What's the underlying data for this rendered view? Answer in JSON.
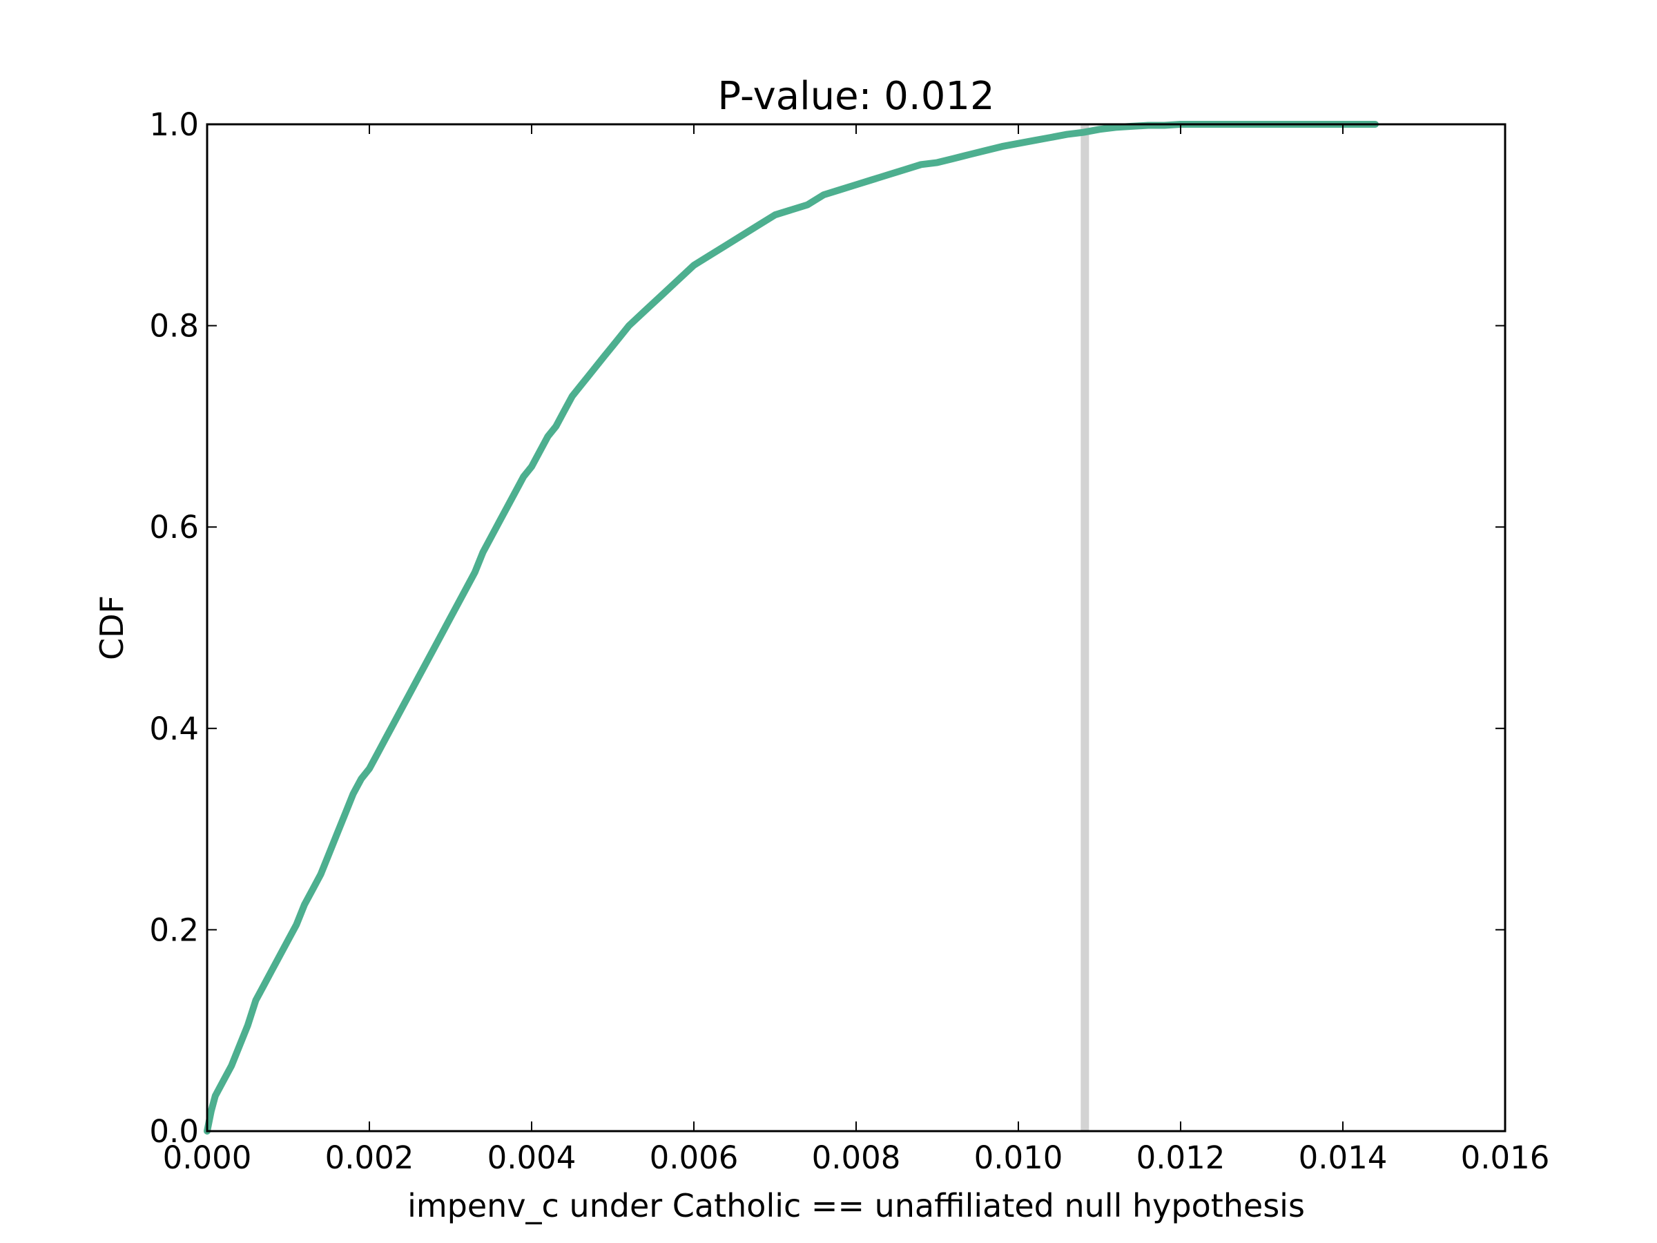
{
  "chart_data": {
    "type": "line",
    "title": "P-value: 0.012",
    "xlabel": "impenv_c under Catholic == unaffiliated null hypothesis",
    "ylabel": "CDF",
    "xlim": [
      0.0,
      0.016
    ],
    "ylim": [
      0.0,
      1.0
    ],
    "xticks": [
      "0.000",
      "0.002",
      "0.004",
      "0.006",
      "0.008",
      "0.010",
      "0.012",
      "0.014",
      "0.016"
    ],
    "yticks": [
      "0.0",
      "0.2",
      "0.4",
      "0.6",
      "0.8",
      "1.0"
    ],
    "grid": false,
    "legend": "none",
    "series": [
      {
        "color": "#4daf8f",
        "x": [
          0.0,
          5e-05,
          0.0001,
          0.0002,
          0.0003,
          0.0004,
          0.0005,
          0.0006,
          0.0007,
          0.0008,
          0.0009,
          0.001,
          0.0011,
          0.0012,
          0.0013,
          0.0014,
          0.0015,
          0.0016,
          0.0017,
          0.0018,
          0.0019,
          0.002,
          0.0021,
          0.0022,
          0.0023,
          0.0024,
          0.0025,
          0.0026,
          0.0027,
          0.0028,
          0.0029,
          0.003,
          0.0031,
          0.0032,
          0.0033,
          0.0034,
          0.0035,
          0.0036,
          0.0037,
          0.0038,
          0.0039,
          0.004,
          0.0041,
          0.0042,
          0.0043,
          0.0044,
          0.0045,
          0.0046,
          0.0047,
          0.0048,
          0.0049,
          0.005,
          0.0052,
          0.0054,
          0.0056,
          0.0058,
          0.006,
          0.0062,
          0.0064,
          0.0066,
          0.0068,
          0.007,
          0.0072,
          0.0074,
          0.0076,
          0.0078,
          0.008,
          0.0082,
          0.0084,
          0.0086,
          0.0088,
          0.009,
          0.0092,
          0.0094,
          0.0096,
          0.0098,
          0.01,
          0.0102,
          0.0104,
          0.0106,
          0.0108,
          0.011,
          0.0112,
          0.0114,
          0.0116,
          0.0118,
          0.012,
          0.0125,
          0.013,
          0.0135,
          0.014,
          0.0144
        ],
        "y": [
          0.0,
          0.02,
          0.035,
          0.05,
          0.065,
          0.085,
          0.105,
          0.13,
          0.145,
          0.16,
          0.175,
          0.19,
          0.205,
          0.225,
          0.24,
          0.255,
          0.275,
          0.295,
          0.315,
          0.335,
          0.35,
          0.36,
          0.375,
          0.39,
          0.405,
          0.42,
          0.435,
          0.45,
          0.465,
          0.48,
          0.495,
          0.51,
          0.525,
          0.54,
          0.555,
          0.575,
          0.59,
          0.605,
          0.62,
          0.635,
          0.65,
          0.66,
          0.675,
          0.69,
          0.7,
          0.715,
          0.73,
          0.74,
          0.75,
          0.76,
          0.77,
          0.78,
          0.8,
          0.815,
          0.83,
          0.845,
          0.86,
          0.87,
          0.88,
          0.89,
          0.9,
          0.91,
          0.915,
          0.92,
          0.93,
          0.935,
          0.94,
          0.945,
          0.95,
          0.955,
          0.96,
          0.962,
          0.966,
          0.97,
          0.974,
          0.978,
          0.981,
          0.984,
          0.987,
          0.99,
          0.992,
          0.995,
          0.997,
          0.998,
          0.999,
          0.999,
          1.0,
          1.0,
          1.0,
          1.0,
          1.0,
          1.0
        ]
      }
    ],
    "reference_line": {
      "x": 0.01082,
      "color": "#d3d3d3"
    }
  }
}
